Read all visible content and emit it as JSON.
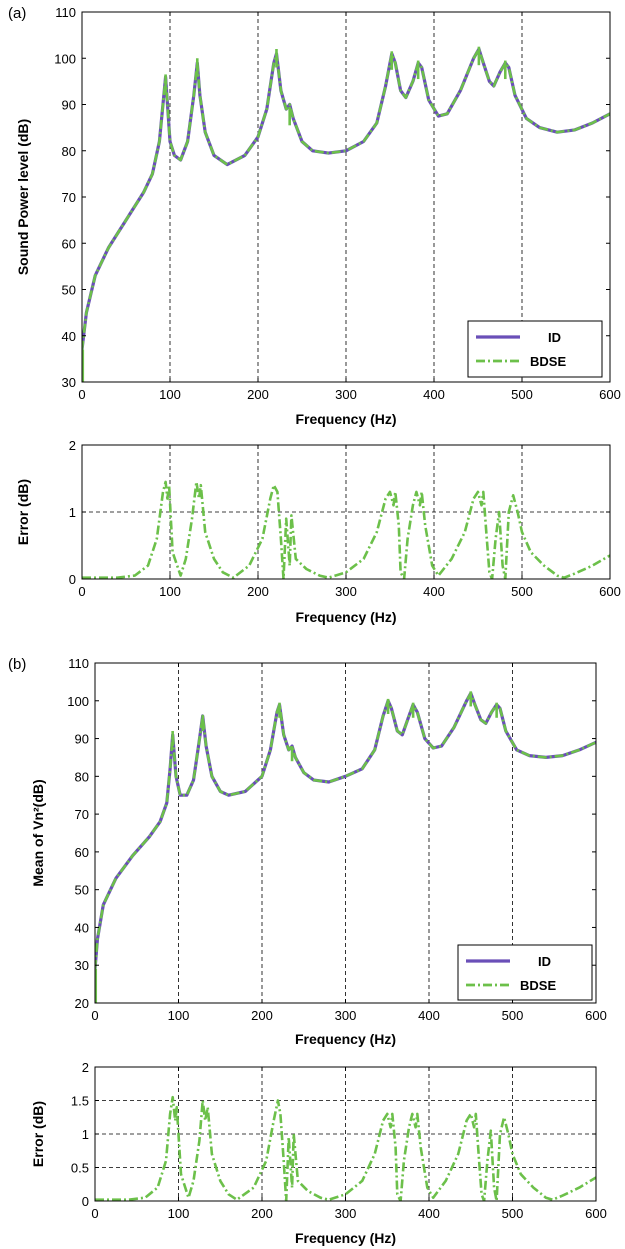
{
  "colors": {
    "id": "#6a4fb8",
    "bdse": "#6cc04a",
    "grid": "#000000"
  },
  "chart_data": [
    {
      "panel": "(a)",
      "type": "line",
      "xlabel": "Frequency (Hz)",
      "ylabel": "Sound Power level (dB)",
      "xlim": [
        0,
        600
      ],
      "ylim": [
        30,
        110
      ],
      "xticks": [
        0,
        100,
        200,
        300,
        400,
        500,
        600
      ],
      "yticks": [
        30,
        40,
        50,
        60,
        70,
        80,
        90,
        100,
        110
      ],
      "grid": "x-major dashed",
      "legend": "bottom-right",
      "series": [
        {
          "name": "ID",
          "style": "solid"
        },
        {
          "name": "BDSE",
          "style": "dash-dot"
        }
      ],
      "baseline": 28,
      "curve": [
        [
          0,
          37
        ],
        [
          5,
          45
        ],
        [
          15,
          53
        ],
        [
          30,
          59
        ],
        [
          50,
          65
        ],
        [
          70,
          71
        ],
        [
          80,
          75
        ],
        [
          88,
          82
        ],
        [
          95,
          96
        ],
        [
          100,
          82
        ],
        [
          105,
          79
        ],
        [
          112,
          78
        ],
        [
          120,
          82
        ],
        [
          127,
          92
        ],
        [
          131,
          99
        ],
        [
          134,
          92
        ],
        [
          140,
          84
        ],
        [
          150,
          79
        ],
        [
          165,
          77
        ],
        [
          185,
          79
        ],
        [
          200,
          83
        ],
        [
          210,
          89
        ],
        [
          218,
          99
        ],
        [
          221,
          101
        ],
        [
          226,
          93
        ],
        [
          232,
          89
        ],
        [
          236,
          90
        ],
        [
          240,
          87
        ],
        [
          250,
          82
        ],
        [
          262,
          80
        ],
        [
          280,
          79.5
        ],
        [
          300,
          80
        ],
        [
          320,
          82
        ],
        [
          335,
          86
        ],
        [
          345,
          94
        ],
        [
          352,
          101
        ],
        [
          356,
          99
        ],
        [
          362,
          93
        ],
        [
          368,
          91.5
        ],
        [
          376,
          95
        ],
        [
          382,
          99
        ],
        [
          386,
          98
        ],
        [
          394,
          91
        ],
        [
          405,
          87.5
        ],
        [
          415,
          88
        ],
        [
          430,
          93
        ],
        [
          445,
          100
        ],
        [
          451,
          102
        ],
        [
          456,
          99
        ],
        [
          463,
          95
        ],
        [
          468,
          94
        ],
        [
          475,
          97
        ],
        [
          481,
          99
        ],
        [
          485,
          98
        ],
        [
          492,
          92
        ],
        [
          505,
          87
        ],
        [
          520,
          85
        ],
        [
          540,
          84
        ],
        [
          560,
          84.5
        ],
        [
          580,
          86
        ],
        [
          600,
          88
        ]
      ],
      "peaks": [
        [
          95,
          96.5
        ],
        [
          131,
          100
        ],
        [
          221,
          102
        ],
        [
          236,
          89.5
        ],
        [
          352,
          101.5
        ],
        [
          382,
          99.5
        ],
        [
          451,
          102.5
        ],
        [
          481,
          99.5
        ]
      ]
    },
    {
      "panel": "",
      "type": "line",
      "xlabel": "Frequency (Hz)",
      "ylabel": "Error (dB)",
      "xlim": [
        0,
        600
      ],
      "ylim": [
        0,
        2
      ],
      "xticks": [
        0,
        100,
        200,
        300,
        400,
        500,
        600
      ],
      "yticks": [
        0,
        1,
        2
      ],
      "grid": "x-major dashed; y=1 dashed",
      "series": [
        {
          "name": "BDSE",
          "style": "dash-dot"
        }
      ],
      "curve": [
        [
          0,
          0.02
        ],
        [
          40,
          0.02
        ],
        [
          60,
          0.05
        ],
        [
          75,
          0.2
        ],
        [
          85,
          0.6
        ],
        [
          92,
          1.3
        ],
        [
          95,
          1.45
        ],
        [
          97,
          1.2
        ],
        [
          99,
          1.4
        ],
        [
          103,
          0.4
        ],
        [
          112,
          0.05
        ],
        [
          118,
          0.3
        ],
        [
          125,
          0.9
        ],
        [
          130,
          1.45
        ],
        [
          133,
          1.2
        ],
        [
          135,
          1.4
        ],
        [
          140,
          0.7
        ],
        [
          150,
          0.3
        ],
        [
          160,
          0.1
        ],
        [
          172,
          0.02
        ],
        [
          190,
          0.2
        ],
        [
          205,
          0.6
        ],
        [
          214,
          1.2
        ],
        [
          218,
          1.4
        ],
        [
          222,
          1.3
        ],
        [
          226,
          0.6
        ],
        [
          229,
          0.0
        ],
        [
          232,
          0.9
        ],
        [
          236,
          0.2
        ],
        [
          238,
          0.95
        ],
        [
          243,
          0.3
        ],
        [
          255,
          0.15
        ],
        [
          270,
          0.05
        ],
        [
          280,
          0.02
        ],
        [
          300,
          0.1
        ],
        [
          320,
          0.3
        ],
        [
          335,
          0.7
        ],
        [
          345,
          1.2
        ],
        [
          350,
          1.3
        ],
        [
          354,
          1.1
        ],
        [
          356,
          1.3
        ],
        [
          360,
          0.8
        ],
        [
          362,
          0.1
        ],
        [
          366,
          0.0
        ],
        [
          370,
          0.6
        ],
        [
          376,
          1.1
        ],
        [
          380,
          1.3
        ],
        [
          384,
          1.1
        ],
        [
          386,
          1.3
        ],
        [
          390,
          0.8
        ],
        [
          398,
          0.2
        ],
        [
          405,
          0.05
        ],
        [
          420,
          0.3
        ],
        [
          435,
          0.7
        ],
        [
          445,
          1.2
        ],
        [
          450,
          1.3
        ],
        [
          454,
          1.1
        ],
        [
          456,
          1.3
        ],
        [
          460,
          0.6
        ],
        [
          463,
          0.1
        ],
        [
          466,
          0.0
        ],
        [
          470,
          0.6
        ],
        [
          474,
          1.0
        ],
        [
          478,
          0.2
        ],
        [
          481,
          0.0
        ],
        [
          485,
          1.0
        ],
        [
          490,
          1.25
        ],
        [
          495,
          1.0
        ],
        [
          500,
          0.7
        ],
        [
          510,
          0.4
        ],
        [
          525,
          0.2
        ],
        [
          540,
          0.05
        ],
        [
          548,
          0.02
        ],
        [
          560,
          0.08
        ],
        [
          580,
          0.2
        ],
        [
          600,
          0.35
        ]
      ]
    },
    {
      "panel": "(b)",
      "type": "line",
      "xlabel": "Frequency (Hz)",
      "ylabel": "Mean of Vn²(dB)",
      "xlim": [
        0,
        600
      ],
      "ylim": [
        20,
        110
      ],
      "xticks": [
        0,
        100,
        200,
        300,
        400,
        500,
        600
      ],
      "yticks": [
        20,
        30,
        40,
        50,
        60,
        70,
        80,
        90,
        100,
        110
      ],
      "grid": "x-major dashed",
      "legend": "bottom-right",
      "series": [
        {
          "name": "ID",
          "style": "solid"
        },
        {
          "name": "BDSE",
          "style": "dash-dot"
        }
      ],
      "baseline": 18,
      "curve": [
        [
          0,
          29
        ],
        [
          3,
          37
        ],
        [
          10,
          46
        ],
        [
          25,
          53
        ],
        [
          45,
          59
        ],
        [
          65,
          64
        ],
        [
          78,
          68
        ],
        [
          86,
          73
        ],
        [
          90,
          82
        ],
        [
          93,
          91
        ],
        [
          97,
          80
        ],
        [
          102,
          75
        ],
        [
          110,
          75
        ],
        [
          118,
          79
        ],
        [
          124,
          88
        ],
        [
          129,
          96
        ],
        [
          133,
          88
        ],
        [
          140,
          80
        ],
        [
          150,
          76
        ],
        [
          160,
          75
        ],
        [
          180,
          76
        ],
        [
          200,
          80
        ],
        [
          210,
          87
        ],
        [
          218,
          97
        ],
        [
          221,
          99
        ],
        [
          226,
          91
        ],
        [
          232,
          87
        ],
        [
          236,
          88
        ],
        [
          240,
          85
        ],
        [
          250,
          81
        ],
        [
          262,
          79
        ],
        [
          280,
          78.5
        ],
        [
          300,
          80
        ],
        [
          320,
          82
        ],
        [
          335,
          87
        ],
        [
          345,
          96
        ],
        [
          351,
          100
        ],
        [
          355,
          98
        ],
        [
          362,
          92
        ],
        [
          368,
          91
        ],
        [
          376,
          96
        ],
        [
          381,
          99
        ],
        [
          386,
          97
        ],
        [
          395,
          90
        ],
        [
          405,
          87.5
        ],
        [
          415,
          88
        ],
        [
          430,
          93
        ],
        [
          445,
          100
        ],
        [
          450,
          102
        ],
        [
          455,
          99
        ],
        [
          462,
          95
        ],
        [
          468,
          94
        ],
        [
          475,
          97
        ],
        [
          481,
          99
        ],
        [
          485,
          98
        ],
        [
          492,
          92
        ],
        [
          505,
          87
        ],
        [
          520,
          85.5
        ],
        [
          540,
          85
        ],
        [
          560,
          85.5
        ],
        [
          580,
          87
        ],
        [
          600,
          89
        ]
      ],
      "peaks": [
        [
          93,
          92
        ],
        [
          129,
          96
        ],
        [
          221,
          99.5
        ],
        [
          236,
          88
        ],
        [
          351,
          100.5
        ],
        [
          381,
          99.5
        ],
        [
          450,
          102.5
        ],
        [
          481,
          99.5
        ]
      ]
    },
    {
      "panel": "",
      "type": "line",
      "xlabel": "Frequency (Hz)",
      "ylabel": "Error  (dB)",
      "xlim": [
        0,
        600
      ],
      "ylim": [
        0,
        2
      ],
      "xticks": [
        0,
        100,
        200,
        300,
        400,
        500,
        600
      ],
      "yticks": [
        0,
        0.5,
        1,
        1.5,
        2
      ],
      "ytick_labels": [
        "0",
        "0.5",
        "1",
        "1.5",
        "2"
      ],
      "grid": "x-major dashed; y=0.5,1,1.5 dashed",
      "series": [
        {
          "name": "BDSE",
          "style": "dash-dot"
        }
      ],
      "curve": [
        [
          0,
          0.02
        ],
        [
          40,
          0.02
        ],
        [
          60,
          0.05
        ],
        [
          75,
          0.2
        ],
        [
          85,
          0.6
        ],
        [
          90,
          1.3
        ],
        [
          93,
          1.55
        ],
        [
          96,
          1.2
        ],
        [
          98,
          1.4
        ],
        [
          103,
          0.4
        ],
        [
          112,
          0.05
        ],
        [
          118,
          0.3
        ],
        [
          125,
          0.9
        ],
        [
          129,
          1.5
        ],
        [
          132,
          1.2
        ],
        [
          135,
          1.4
        ],
        [
          140,
          0.7
        ],
        [
          150,
          0.3
        ],
        [
          160,
          0.1
        ],
        [
          170,
          0.02
        ],
        [
          190,
          0.2
        ],
        [
          205,
          0.6
        ],
        [
          214,
          1.2
        ],
        [
          219,
          1.5
        ],
        [
          222,
          1.3
        ],
        [
          226,
          0.6
        ],
        [
          229,
          0.0
        ],
        [
          232,
          0.95
        ],
        [
          236,
          0.2
        ],
        [
          238,
          1.0
        ],
        [
          243,
          0.3
        ],
        [
          255,
          0.15
        ],
        [
          270,
          0.05
        ],
        [
          280,
          0.02
        ],
        [
          300,
          0.1
        ],
        [
          320,
          0.3
        ],
        [
          335,
          0.7
        ],
        [
          345,
          1.2
        ],
        [
          350,
          1.3
        ],
        [
          354,
          1.1
        ],
        [
          356,
          1.3
        ],
        [
          360,
          0.8
        ],
        [
          362,
          0.1
        ],
        [
          366,
          0.0
        ],
        [
          370,
          0.6
        ],
        [
          376,
          1.1
        ],
        [
          380,
          1.3
        ],
        [
          384,
          1.1
        ],
        [
          386,
          1.3
        ],
        [
          390,
          0.8
        ],
        [
          398,
          0.2
        ],
        [
          405,
          0.05
        ],
        [
          420,
          0.3
        ],
        [
          435,
          0.7
        ],
        [
          445,
          1.2
        ],
        [
          450,
          1.3
        ],
        [
          454,
          1.1
        ],
        [
          456,
          1.3
        ],
        [
          460,
          0.6
        ],
        [
          463,
          0.1
        ],
        [
          466,
          0.0
        ],
        [
          470,
          0.6
        ],
        [
          474,
          1.05
        ],
        [
          478,
          0.2
        ],
        [
          481,
          0.0
        ],
        [
          485,
          1.0
        ],
        [
          490,
          1.25
        ],
        [
          495,
          1.0
        ],
        [
          500,
          0.7
        ],
        [
          510,
          0.4
        ],
        [
          525,
          0.2
        ],
        [
          540,
          0.05
        ],
        [
          548,
          0.02
        ],
        [
          560,
          0.08
        ],
        [
          580,
          0.2
        ],
        [
          600,
          0.35
        ]
      ]
    }
  ]
}
